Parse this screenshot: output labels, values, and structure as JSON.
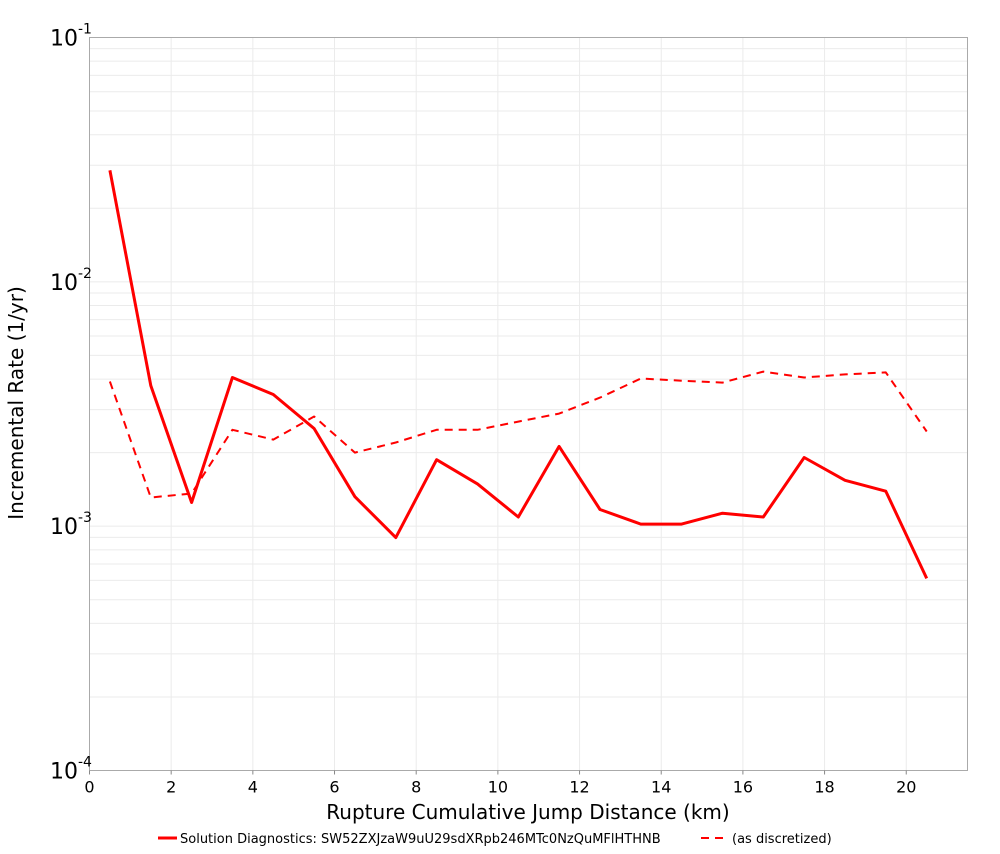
{
  "chart_data": {
    "type": "line",
    "title": "",
    "xlabel": "Rupture Cumulative Jump Distance (km)",
    "ylabel": "Incremental Rate (1/yr)",
    "xlim": [
      0,
      21.5
    ],
    "ylim": [
      0.0001,
      0.1
    ],
    "yscale": "log",
    "grid": true,
    "legend_position": "bottom",
    "x_ticks": [
      0,
      2,
      4,
      6,
      8,
      10,
      12,
      14,
      16,
      18,
      20
    ],
    "y_ticks": [
      {
        "base": "10",
        "exp": "-4",
        "value": 0.0001
      },
      {
        "base": "10",
        "exp": "-3",
        "value": 0.001
      },
      {
        "base": "10",
        "exp": "-2",
        "value": 0.01
      },
      {
        "base": "10",
        "exp": "-1",
        "value": 0.1
      }
    ],
    "x": [
      0.5,
      1.5,
      2.5,
      3.5,
      4.5,
      5.5,
      6.5,
      7.5,
      8.5,
      9.5,
      10.5,
      11.5,
      12.5,
      13.5,
      14.5,
      15.5,
      16.5,
      17.5,
      18.5,
      19.5,
      20.5
    ],
    "series": [
      {
        "name": "Solution Diagnostics: SW52ZXJzaW9uU29sdXRpb246MTc0NzQuMFlHTHNB",
        "color": "#ff0000",
        "style": "solid",
        "values": [
          0.0286,
          0.00376,
          0.00125,
          0.00406,
          0.00346,
          0.00251,
          0.00132,
          0.000898,
          0.00187,
          0.00149,
          0.00109,
          0.00212,
          0.00117,
          0.00102,
          0.00102,
          0.00113,
          0.00109,
          0.00191,
          0.00154,
          0.00139,
          0.000611
        ]
      },
      {
        "name": "(as discretized)",
        "color": "#ff0000",
        "style": "dashed",
        "values": [
          0.00391,
          0.00131,
          0.00136,
          0.00248,
          0.00226,
          0.00281,
          0.002,
          0.0022,
          0.00248,
          0.00248,
          0.00268,
          0.00289,
          0.00336,
          0.00402,
          0.00394,
          0.00387,
          0.00429,
          0.00406,
          0.00418,
          0.00426,
          0.00244
        ]
      }
    ]
  }
}
